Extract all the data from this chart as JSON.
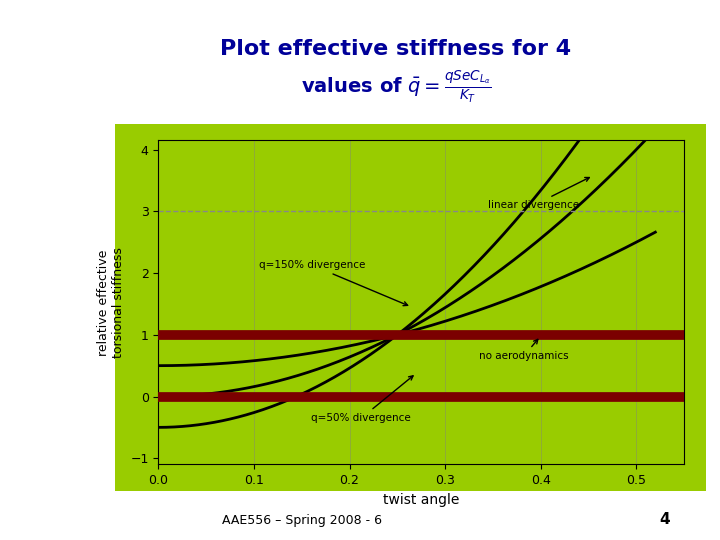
{
  "xlabel": "twist angle",
  "ylabel": "relative effective\ntorsional stiffness",
  "xlim": [
    0.0,
    0.55
  ],
  "ylim": [
    -1.1,
    4.15
  ],
  "xticks": [
    0.0,
    0.1,
    0.2,
    0.3,
    0.4,
    0.5
  ],
  "yticks": [
    -1,
    0,
    1,
    2,
    3,
    4
  ],
  "bg_color": "#99CC00",
  "line_color": "#000000",
  "hline_color": "#7B0000",
  "hline_lw": 7,
  "curve_lw": 2.0,
  "q_bars": [
    0.0,
    0.5,
    1.0,
    1.5
  ],
  "annotation_linear": "linear divergence",
  "annotation_150": "q=150% divergence",
  "annotation_50": "q=50% divergence",
  "annotation_no_aero": "no aerodynamics",
  "footer": "AAE556 – Spring 2008 - 6",
  "footer_number": "4",
  "dashed_line_y": 3.0,
  "dashed_color": "#888888",
  "title_line1": "Plot effective stiffness for 4",
  "title_line2": "values of $\\bar{q} = \\frac{qSeC_{L_\\alpha}}{K_T}$",
  "title_color": "#000099"
}
